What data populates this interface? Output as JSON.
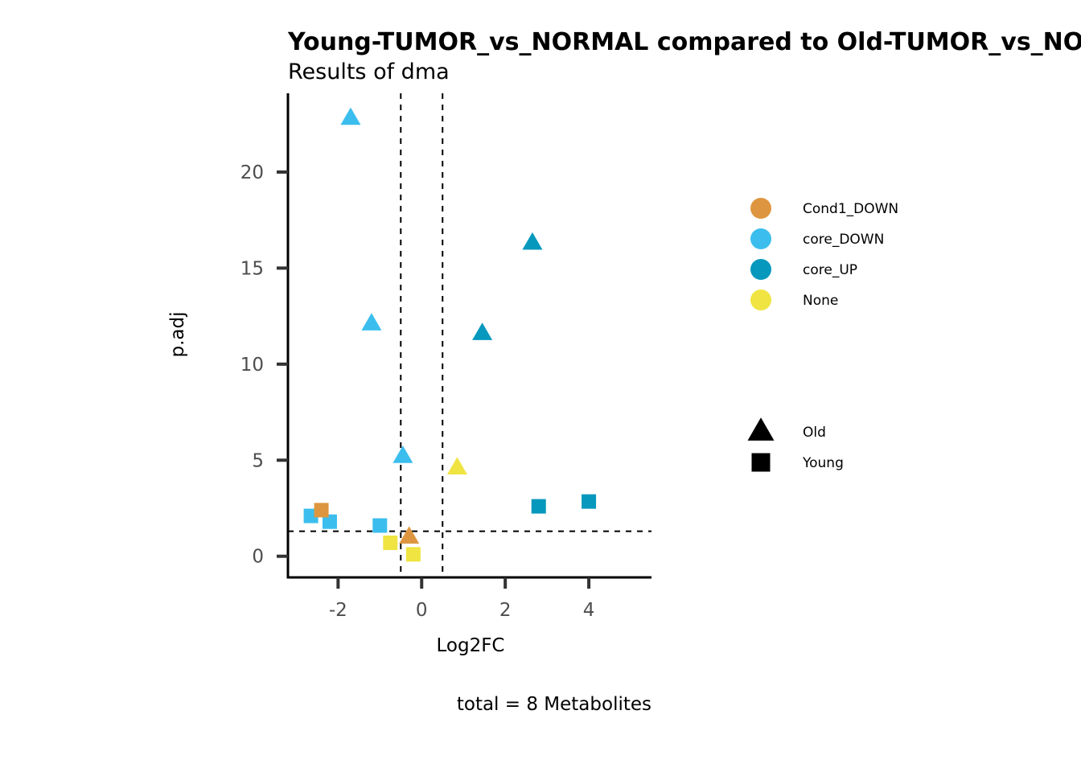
{
  "chart_data": {
    "type": "scatter",
    "title": "Young-TUMOR_vs_NORMAL compared to Old-TUMOR_vs_NORMAL",
    "subtitle": "Results of dma",
    "xlabel": "Log2FC",
    "ylabel": "p.adj",
    "caption": "total = 8 Metabolites",
    "xlim": [
      -3.2,
      5.5
    ],
    "ylim": [
      -1.1,
      24.1
    ],
    "x_ticks": [
      -2,
      0,
      2,
      4
    ],
    "y_ticks": [
      0,
      5,
      10,
      15,
      20
    ],
    "vlines": [
      -0.5,
      0.5
    ],
    "hline": 1.3,
    "grid": false,
    "legend_placement": "right",
    "color_legend": [
      {
        "label": "Cond1_DOWN",
        "color": "#DD963F"
      },
      {
        "label": "core_DOWN",
        "color": "#3BBEEE"
      },
      {
        "label": "core_UP",
        "color": "#0698BD"
      },
      {
        "label": "None",
        "color": "#F0E442"
      }
    ],
    "shape_legend": [
      {
        "label": "Old",
        "shape": "triangle"
      },
      {
        "label": "Young",
        "shape": "square"
      }
    ],
    "points": [
      {
        "x": -1.7,
        "y": 22.8,
        "group": "core_DOWN",
        "shape": "triangle"
      },
      {
        "x": -1.2,
        "y": 12.1,
        "group": "core_DOWN",
        "shape": "triangle"
      },
      {
        "x": -0.45,
        "y": 5.2,
        "group": "core_DOWN",
        "shape": "triangle"
      },
      {
        "x": -0.3,
        "y": 1.0,
        "group": "Cond1_DOWN",
        "shape": "triangle"
      },
      {
        "x": 0.85,
        "y": 4.6,
        "group": "None",
        "shape": "triangle"
      },
      {
        "x": 1.45,
        "y": 11.6,
        "group": "core_UP",
        "shape": "triangle"
      },
      {
        "x": 2.65,
        "y": 16.3,
        "group": "core_UP",
        "shape": "triangle"
      },
      {
        "x": -2.65,
        "y": 2.1,
        "group": "core_DOWN",
        "shape": "square"
      },
      {
        "x": -2.2,
        "y": 1.8,
        "group": "core_DOWN",
        "shape": "square"
      },
      {
        "x": -2.4,
        "y": 2.4,
        "group": "Cond1_DOWN",
        "shape": "square"
      },
      {
        "x": -1.0,
        "y": 1.6,
        "group": "core_DOWN",
        "shape": "square"
      },
      {
        "x": -0.75,
        "y": 0.7,
        "group": "None",
        "shape": "square"
      },
      {
        "x": -0.2,
        "y": 0.1,
        "group": "None",
        "shape": "square"
      },
      {
        "x": 2.8,
        "y": 2.6,
        "group": "core_UP",
        "shape": "square"
      },
      {
        "x": 4.0,
        "y": 2.85,
        "group": "core_UP",
        "shape": "square"
      }
    ]
  }
}
